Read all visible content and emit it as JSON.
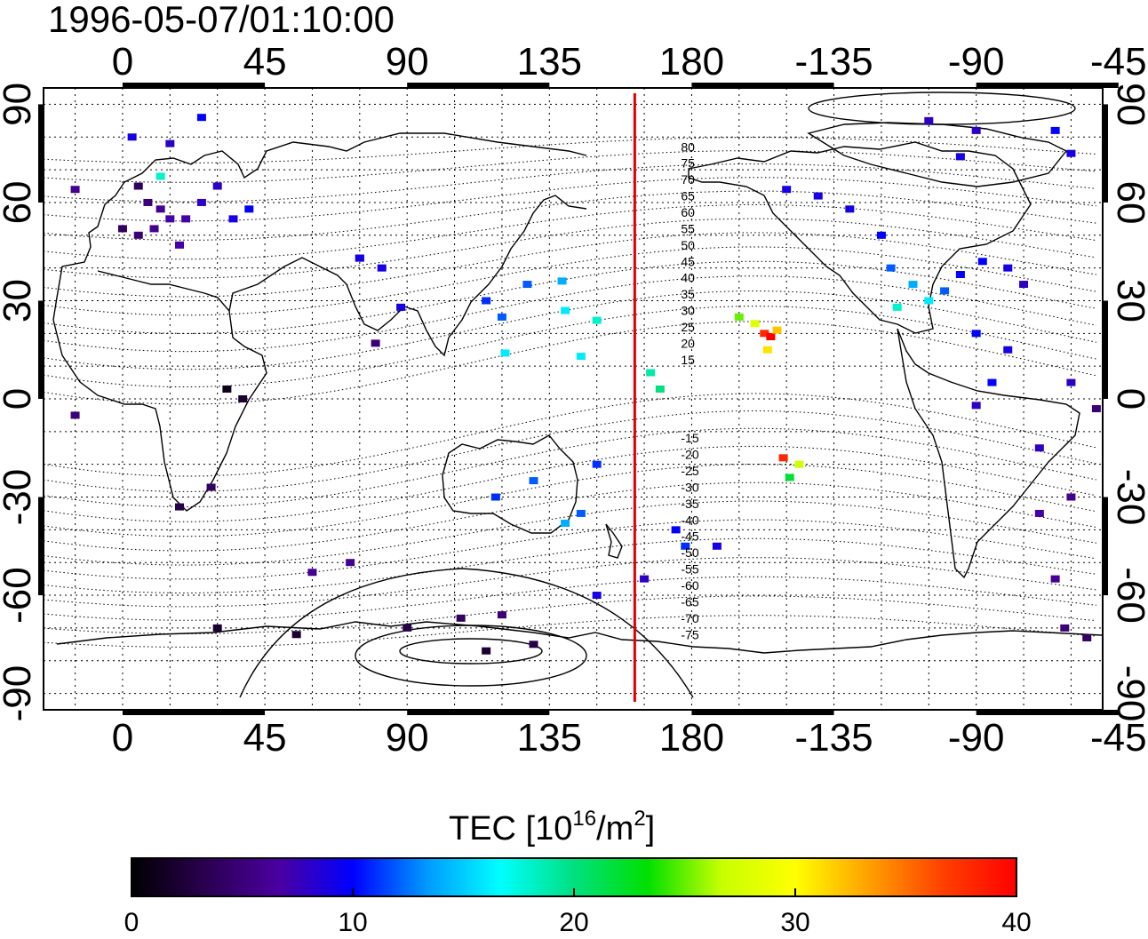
{
  "title": "1996-05-07/01:10:00",
  "map": {
    "lon_ticks": [
      0,
      45,
      90,
      135,
      180,
      -135,
      -90,
      -45
    ],
    "lon_tick_labels": [
      "0",
      "45",
      "90",
      "135",
      "180",
      "-135",
      "-90",
      "-45"
    ],
    "lat_ticks": [
      90,
      60,
      30,
      0,
      -30,
      -60,
      -90
    ],
    "lat_tick_labels": [
      "90",
      "60",
      "30",
      "0",
      "-30",
      "-60",
      "-90"
    ],
    "lon_range": [
      -25,
      310
    ],
    "lat_range": [
      -95,
      95
    ],
    "grid": true,
    "terminator_longitude": 162,
    "terminator_color": "#e00000",
    "magnetic_latitude_labels": [
      "80",
      "75",
      "70",
      "65",
      "60",
      "55",
      "50",
      "45",
      "40",
      "35",
      "30",
      "25",
      "20",
      "15",
      "-15",
      "-20",
      "-25",
      "-30",
      "-35",
      "-40",
      "-45",
      "-50",
      "-55",
      "-60",
      "-65",
      "-70",
      "-75"
    ]
  },
  "colorbar": {
    "title_prefix": "TEC  [10",
    "title_exp1": "16",
    "title_mid": "/m",
    "title_exp2": "2",
    "title_suffix": "]",
    "range": [
      0,
      40
    ],
    "ticks": [
      "0",
      "10",
      "20",
      "30",
      "40"
    ],
    "colormap": [
      "#000000",
      "#2a0050",
      "#4b00a0",
      "#0000ff",
      "#0099ff",
      "#00ffff",
      "#00e080",
      "#00e000",
      "#c8ff00",
      "#ffff00",
      "#ffa000",
      "#ff4000",
      "#ff0000"
    ]
  },
  "chart_data": {
    "type": "scatter",
    "xlabel": "",
    "ylabel": "",
    "xlim": [
      -25,
      310
    ],
    "ylim": [
      -95,
      95
    ],
    "value_label": "TEC [10^16/m^2]",
    "points": [
      {
        "lon": 5,
        "lat": 65,
        "tec": 4
      },
      {
        "lon": 8,
        "lat": 60,
        "tec": 5
      },
      {
        "lon": 12,
        "lat": 58,
        "tec": 6
      },
      {
        "lon": 15,
        "lat": 55,
        "tec": 7
      },
      {
        "lon": 10,
        "lat": 52,
        "tec": 6
      },
      {
        "lon": 20,
        "lat": 55,
        "tec": 7
      },
      {
        "lon": 25,
        "lat": 60,
        "tec": 8
      },
      {
        "lon": 5,
        "lat": 50,
        "tec": 5
      },
      {
        "lon": 0,
        "lat": 52,
        "tec": 4
      },
      {
        "lon": 30,
        "lat": 65,
        "tec": 8
      },
      {
        "lon": 18,
        "lat": 47,
        "tec": 7
      },
      {
        "lon": 35,
        "lat": 55,
        "tec": 9
      },
      {
        "lon": 40,
        "lat": 58,
        "tec": 10
      },
      {
        "lon": 12,
        "lat": 68,
        "tec": 18
      },
      {
        "lon": 3,
        "lat": 80,
        "tec": 9
      },
      {
        "lon": 25,
        "lat": 86,
        "tec": 10
      },
      {
        "lon": 15,
        "lat": 78,
        "tec": 8
      },
      {
        "lon": -15,
        "lat": 64,
        "tec": 6
      },
      {
        "lon": 75,
        "lat": 43,
        "tec": 9
      },
      {
        "lon": 82,
        "lat": 40,
        "tec": 9
      },
      {
        "lon": 88,
        "lat": 28,
        "tec": 9
      },
      {
        "lon": 80,
        "lat": 17,
        "tec": 5
      },
      {
        "lon": 75,
        "lat": 43,
        "tec": 9
      },
      {
        "lon": 38,
        "lat": 0,
        "tec": 2
      },
      {
        "lon": 33,
        "lat": 3,
        "tec": 1
      },
      {
        "lon": -15,
        "lat": -5,
        "tec": 5
      },
      {
        "lon": 28,
        "lat": -27,
        "tec": 4
      },
      {
        "lon": 18,
        "lat": -33,
        "tec": 3
      },
      {
        "lon": 72,
        "lat": -50,
        "tec": 6
      },
      {
        "lon": 60,
        "lat": -53,
        "tec": 6
      },
      {
        "lon": 107,
        "lat": -67,
        "tec": 4
      },
      {
        "lon": 120,
        "lat": -66,
        "tec": 5
      },
      {
        "lon": 90,
        "lat": -70,
        "tec": 3
      },
      {
        "lon": 55,
        "lat": -72,
        "tec": 2
      },
      {
        "lon": 30,
        "lat": -70,
        "tec": 2
      },
      {
        "lon": 115,
        "lat": -77,
        "tec": 2
      },
      {
        "lon": 130,
        "lat": -75,
        "tec": 3
      },
      {
        "lon": 115,
        "lat": 30,
        "tec": 11
      },
      {
        "lon": 120,
        "lat": 25,
        "tec": 12
      },
      {
        "lon": 128,
        "lat": 35,
        "tec": 12
      },
      {
        "lon": 139,
        "lat": 36,
        "tec": 14
      },
      {
        "lon": 140,
        "lat": 27,
        "tec": 16
      },
      {
        "lon": 150,
        "lat": 24,
        "tec": 18
      },
      {
        "lon": 121,
        "lat": 14,
        "tec": 16
      },
      {
        "lon": 145,
        "lat": 13,
        "tec": 16
      },
      {
        "lon": 167,
        "lat": 8,
        "tec": 19
      },
      {
        "lon": 170,
        "lat": 3,
        "tec": 20
      },
      {
        "lon": 118,
        "lat": -30,
        "tec": 11
      },
      {
        "lon": 130,
        "lat": -25,
        "tec": 12
      },
      {
        "lon": 145,
        "lat": -35,
        "tec": 12
      },
      {
        "lon": 140,
        "lat": -38,
        "tec": 14
      },
      {
        "lon": 150,
        "lat": -20,
        "tec": 11
      },
      {
        "lon": 175,
        "lat": -40,
        "tec": 10
      },
      {
        "lon": 178,
        "lat": -45,
        "tec": 11
      },
      {
        "lon": 188,
        "lat": -45,
        "tec": 9
      },
      {
        "lon": 165,
        "lat": -55,
        "tec": 8
      },
      {
        "lon": 150,
        "lat": -60,
        "tec": 9
      },
      {
        "lon": 195,
        "lat": 25,
        "tec": 25
      },
      {
        "lon": 200,
        "lat": 23,
        "tec": 28
      },
      {
        "lon": 203,
        "lat": 20,
        "tec": 38
      },
      {
        "lon": 205,
        "lat": 19,
        "tec": 40
      },
      {
        "lon": 207,
        "lat": 21,
        "tec": 32
      },
      {
        "lon": 204,
        "lat": 15,
        "tec": 31
      },
      {
        "lon": 209,
        "lat": -18,
        "tec": 38
      },
      {
        "lon": 214,
        "lat": -20,
        "tec": 27
      },
      {
        "lon": 211,
        "lat": -24,
        "tec": 22
      },
      {
        "lon": 243,
        "lat": 40,
        "tec": 12
      },
      {
        "lon": 250,
        "lat": 35,
        "tec": 14
      },
      {
        "lon": 255,
        "lat": 30,
        "tec": 16
      },
      {
        "lon": 245,
        "lat": 28,
        "tec": 18
      },
      {
        "lon": 260,
        "lat": 33,
        "tec": 12
      },
      {
        "lon": 265,
        "lat": 38,
        "tec": 10
      },
      {
        "lon": 272,
        "lat": 42,
        "tec": 10
      },
      {
        "lon": 280,
        "lat": 40,
        "tec": 9
      },
      {
        "lon": 285,
        "lat": 35,
        "tec": 8
      },
      {
        "lon": 240,
        "lat": 50,
        "tec": 10
      },
      {
        "lon": 230,
        "lat": 58,
        "tec": 9
      },
      {
        "lon": 220,
        "lat": 62,
        "tec": 9
      },
      {
        "lon": 210,
        "lat": 64,
        "tec": 9
      },
      {
        "lon": 270,
        "lat": 20,
        "tec": 10
      },
      {
        "lon": 280,
        "lat": 15,
        "tec": 9
      },
      {
        "lon": 275,
        "lat": 5,
        "tec": 10
      },
      {
        "lon": 270,
        "lat": -2,
        "tec": 8
      },
      {
        "lon": 300,
        "lat": 5,
        "tec": 8
      },
      {
        "lon": 308,
        "lat": -3,
        "tec": 5
      },
      {
        "lon": 290,
        "lat": -15,
        "tec": 8
      },
      {
        "lon": 290,
        "lat": -35,
        "tec": 7
      },
      {
        "lon": 300,
        "lat": -30,
        "tec": 6
      },
      {
        "lon": 295,
        "lat": -55,
        "tec": 6
      },
      {
        "lon": 298,
        "lat": -70,
        "tec": 5
      },
      {
        "lon": 305,
        "lat": -73,
        "tec": 4
      },
      {
        "lon": 255,
        "lat": 85,
        "tec": 8
      },
      {
        "lon": 270,
        "lat": 82,
        "tec": 8
      },
      {
        "lon": 295,
        "lat": 82,
        "tec": 10
      },
      {
        "lon": 300,
        "lat": 75,
        "tec": 9
      },
      {
        "lon": 265,
        "lat": 74,
        "tec": 9
      }
    ]
  }
}
